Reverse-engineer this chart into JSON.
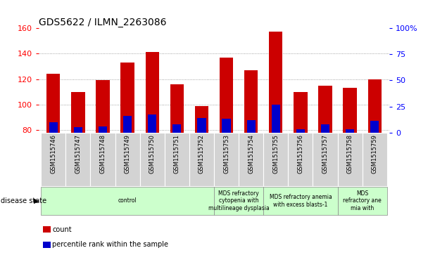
{
  "title": "GDS5622 / ILMN_2263086",
  "samples": [
    "GSM1515746",
    "GSM1515747",
    "GSM1515748",
    "GSM1515749",
    "GSM1515750",
    "GSM1515751",
    "GSM1515752",
    "GSM1515753",
    "GSM1515754",
    "GSM1515755",
    "GSM1515756",
    "GSM1515757",
    "GSM1515758",
    "GSM1515759"
  ],
  "counts": [
    124,
    110,
    119,
    133,
    141,
    116,
    99,
    137,
    127,
    157,
    110,
    115,
    113,
    120
  ],
  "percentile_ranks": [
    10,
    5,
    6,
    16,
    17,
    8,
    14,
    13,
    12,
    27,
    3,
    8,
    3,
    11
  ],
  "y_min": 78,
  "y_max": 160,
  "y_left_ticks": [
    80,
    100,
    120,
    140,
    160
  ],
  "y_right_ticks": [
    0,
    25,
    50,
    75,
    100
  ],
  "bar_color": "#cc0000",
  "percentile_color": "#0000cc",
  "grid_color": "#888888",
  "bar_width": 0.55,
  "perc_bar_width": 0.35,
  "disease_groups": [
    {
      "label": "control",
      "start": 0,
      "end": 7,
      "color": "#ccffcc"
    },
    {
      "label": "MDS refractory\ncytopenia with\nmultilineage dysplasia",
      "start": 7,
      "end": 9,
      "color": "#ccffcc"
    },
    {
      "label": "MDS refractory anemia\nwith excess blasts-1",
      "start": 9,
      "end": 12,
      "color": "#ccffcc"
    },
    {
      "label": "MDS\nrefractory ane\nmia with",
      "start": 12,
      "end": 14,
      "color": "#ccffcc"
    }
  ],
  "legend_count_label": "count",
  "legend_percentile_label": "percentile rank within the sample",
  "disease_state_label": "disease state"
}
